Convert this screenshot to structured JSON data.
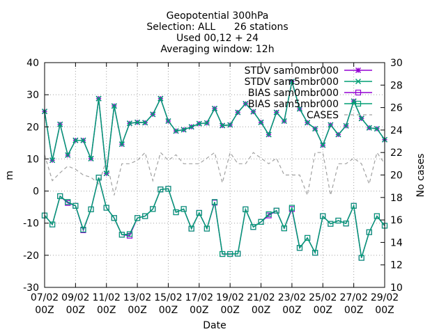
{
  "chart_data": {
    "type": "line",
    "title": [
      "Geopotential 300hPa",
      "Selection: ALL      26 stations",
      "Used 00,12 + 24",
      "Averaging window: 12h"
    ],
    "xlabel": "Date",
    "ylabel": "m",
    "y2label": "No cases",
    "ylim": [
      -30,
      40
    ],
    "y2lim": [
      10,
      30
    ],
    "yticks": [
      "-30",
      "-20",
      "-10",
      "0",
      "10",
      "20",
      "30",
      "40"
    ],
    "y2ticks": [
      "10",
      "12",
      "14",
      "16",
      "18",
      "20",
      "22",
      "24",
      "26",
      "28",
      "30"
    ],
    "xlim": [
      0,
      44
    ],
    "xticks": [
      {
        "x": 0,
        "date": "07/02",
        "hour": "00Z"
      },
      {
        "x": 4,
        "date": "09/02",
        "hour": "00Z"
      },
      {
        "x": 8,
        "date": "11/02",
        "hour": "00Z"
      },
      {
        "x": 12,
        "date": "13/02",
        "hour": "00Z"
      },
      {
        "x": 16,
        "date": "15/02",
        "hour": "00Z"
      },
      {
        "x": 20,
        "date": "17/02",
        "hour": "00Z"
      },
      {
        "x": 24,
        "date": "19/02",
        "hour": "00Z"
      },
      {
        "x": 28,
        "date": "21/02",
        "hour": "00Z"
      },
      {
        "x": 32,
        "date": "23/02",
        "hour": "00Z"
      },
      {
        "x": 36,
        "date": "25/02",
        "hour": "00Z"
      },
      {
        "x": 40,
        "date": "27/02",
        "hour": "00Z"
      },
      {
        "x": 44,
        "date": "29/02",
        "hour": "00Z"
      }
    ],
    "grid": true,
    "legend_position": "top-right",
    "series": [
      {
        "name": "STDV sam0mbr000",
        "axis": "y1",
        "color": "#9400d3",
        "marker": "star",
        "values": [
          24.8,
          9.6,
          20.8,
          11.2,
          15.8,
          15.8,
          10.1,
          28.8,
          5.5,
          26.5,
          14.6,
          21.1,
          21.4,
          21.3,
          23.9,
          28.8,
          21.8,
          18.7,
          19.1,
          20.0,
          21.0,
          21.2,
          25.7,
          20.4,
          20.6,
          24.5,
          27.2,
          24.7,
          21.4,
          17.6,
          24.5,
          21.8,
          34.1,
          25.6,
          21.3,
          19.4,
          14.3,
          20.6,
          17.6,
          20.3,
          28.0,
          22.6,
          19.7,
          19.4,
          16.0
        ]
      },
      {
        "name": "STDV sam5mbr000",
        "axis": "y1",
        "color": "#009e73",
        "marker": "x",
        "values": [
          24.8,
          9.6,
          20.8,
          11.2,
          15.8,
          15.8,
          10.1,
          28.8,
          5.5,
          26.5,
          14.6,
          21.1,
          21.4,
          21.3,
          23.9,
          28.8,
          21.8,
          18.7,
          19.1,
          20.0,
          21.0,
          21.2,
          25.7,
          20.4,
          20.6,
          24.5,
          27.2,
          24.7,
          21.4,
          17.6,
          24.5,
          21.8,
          34.1,
          25.6,
          21.3,
          19.4,
          14.3,
          20.6,
          17.6,
          20.3,
          28.0,
          22.6,
          19.7,
          19.4,
          16.0
        ]
      },
      {
        "name": "BIAS sam0mbr000",
        "axis": "y1",
        "color": "#9400d3",
        "marker": "square",
        "values": [
          -7.6,
          -10.4,
          -1.6,
          -3.7,
          -4.6,
          -12.2,
          -5.7,
          4.2,
          -5.2,
          -8.4,
          -13.6,
          -13.9,
          -8.4,
          -7.8,
          -5.6,
          0.5,
          0.7,
          -6.6,
          -5.6,
          -11.7,
          -6.8,
          -11.7,
          -3.6,
          -19.6,
          -19.6,
          -19.5,
          -5.7,
          -11.2,
          -9.6,
          -7.6,
          -6.1,
          -11.6,
          -5.6,
          -17.7,
          -14.6,
          -19.2,
          -7.8,
          -10.2,
          -9.2,
          -10.1,
          -4.6,
          -20.8,
          -12.8,
          -7.8,
          -10.8
        ]
      },
      {
        "name": "BIAS sam5mbr000",
        "axis": "y1",
        "color": "#009e73",
        "marker": "square",
        "values": [
          -7.6,
          -10.4,
          -1.6,
          -3.4,
          -4.6,
          -12.0,
          -5.7,
          4.2,
          -5.2,
          -8.4,
          -13.6,
          -13.4,
          -8.4,
          -7.8,
          -5.6,
          0.5,
          0.7,
          -6.6,
          -5.6,
          -11.7,
          -6.8,
          -11.7,
          -3.4,
          -19.6,
          -19.6,
          -19.5,
          -5.7,
          -11.2,
          -9.6,
          -7.2,
          -6.1,
          -11.6,
          -5.2,
          -17.7,
          -14.6,
          -19.2,
          -7.8,
          -10.2,
          -9.2,
          -10.1,
          -4.6,
          -20.8,
          -12.8,
          -7.8,
          -10.8
        ]
      },
      {
        "name": "CASES",
        "axis": "y2",
        "color": "#a0a0a0",
        "marker": "none",
        "dashed": true,
        "values": [
          21.8,
          19.5,
          20.2,
          20.8,
          20.5,
          20.0,
          19.8,
          19.2,
          21.3,
          18.2,
          21.0,
          21.0,
          21.3,
          22.0,
          19.5,
          22.0,
          21.3,
          21.8,
          21.0,
          21.0,
          21.0,
          21.5,
          22.0,
          19.3,
          22.0,
          21.0,
          21.0,
          22.0,
          21.5,
          21.0,
          21.5,
          20.0,
          20.0,
          20.0,
          18.2,
          22.0,
          22.0,
          18.2,
          21.0,
          21.0,
          21.5,
          21.0,
          19.2,
          22.0,
          21.0
        ]
      }
    ]
  }
}
